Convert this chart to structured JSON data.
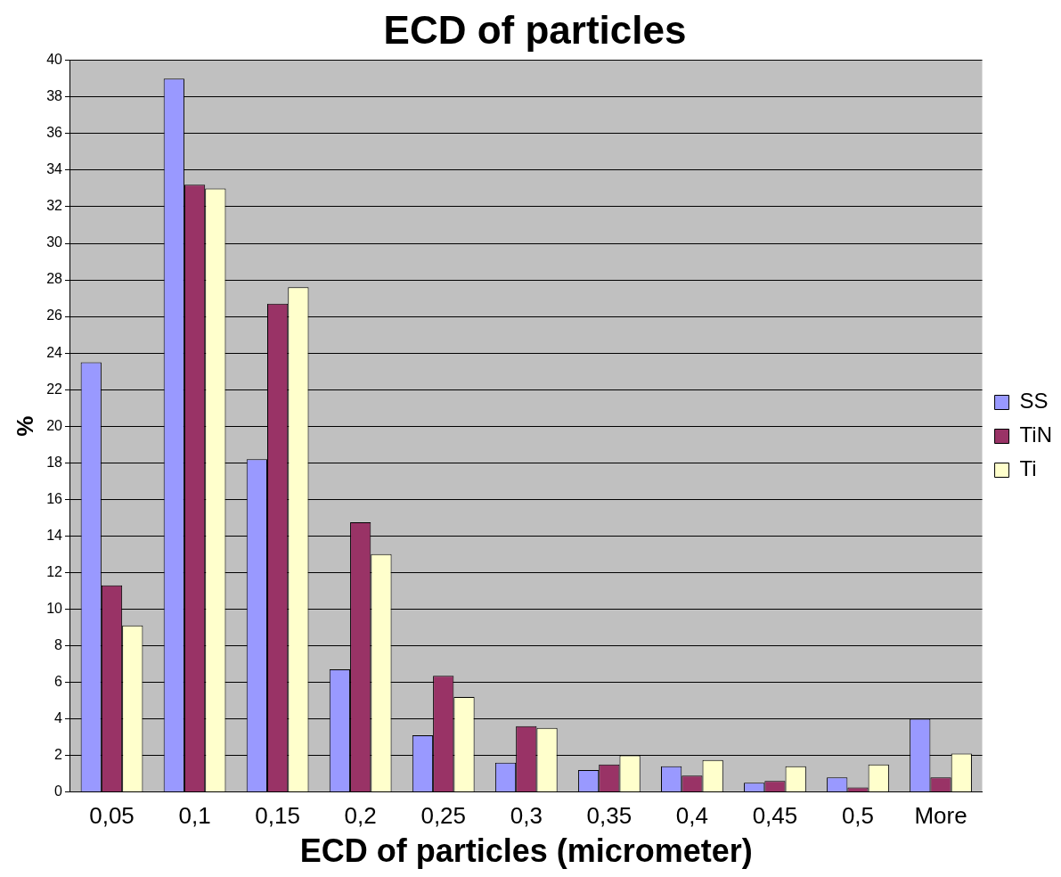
{
  "chart_data": {
    "type": "bar",
    "title": "ECD of particles",
    "xlabel": "ECD of particles (micrometer)",
    "ylabel": "%",
    "categories": [
      "0,05",
      "0,1",
      "0,15",
      "0,2",
      "0,25",
      "0,3",
      "0,35",
      "0,4",
      "0,45",
      "0,5",
      "More"
    ],
    "series": [
      {
        "name": "SS",
        "color": "#9999ff",
        "values": [
          23.5,
          39,
          18.2,
          6.7,
          3.1,
          1.6,
          1.2,
          1.4,
          0.5,
          0.8,
          4.0
        ]
      },
      {
        "name": "TiN",
        "color": "#993366",
        "values": [
          11.3,
          33.2,
          26.7,
          14.75,
          6.35,
          3.6,
          1.5,
          0.9,
          0.6,
          0.25,
          0.8
        ]
      },
      {
        "name": "Ti",
        "color": "#ffffcc",
        "values": [
          9.1,
          33.0,
          27.6,
          13.0,
          5.2,
          3.5,
          2.0,
          1.75,
          1.4,
          1.5,
          2.1
        ]
      }
    ],
    "ylim": [
      0,
      40
    ],
    "yticks": [
      0,
      2,
      4,
      6,
      8,
      10,
      12,
      14,
      16,
      18,
      20,
      22,
      24,
      26,
      28,
      30,
      32,
      34,
      36,
      38,
      40
    ],
    "grid": "y",
    "legend": "right"
  }
}
